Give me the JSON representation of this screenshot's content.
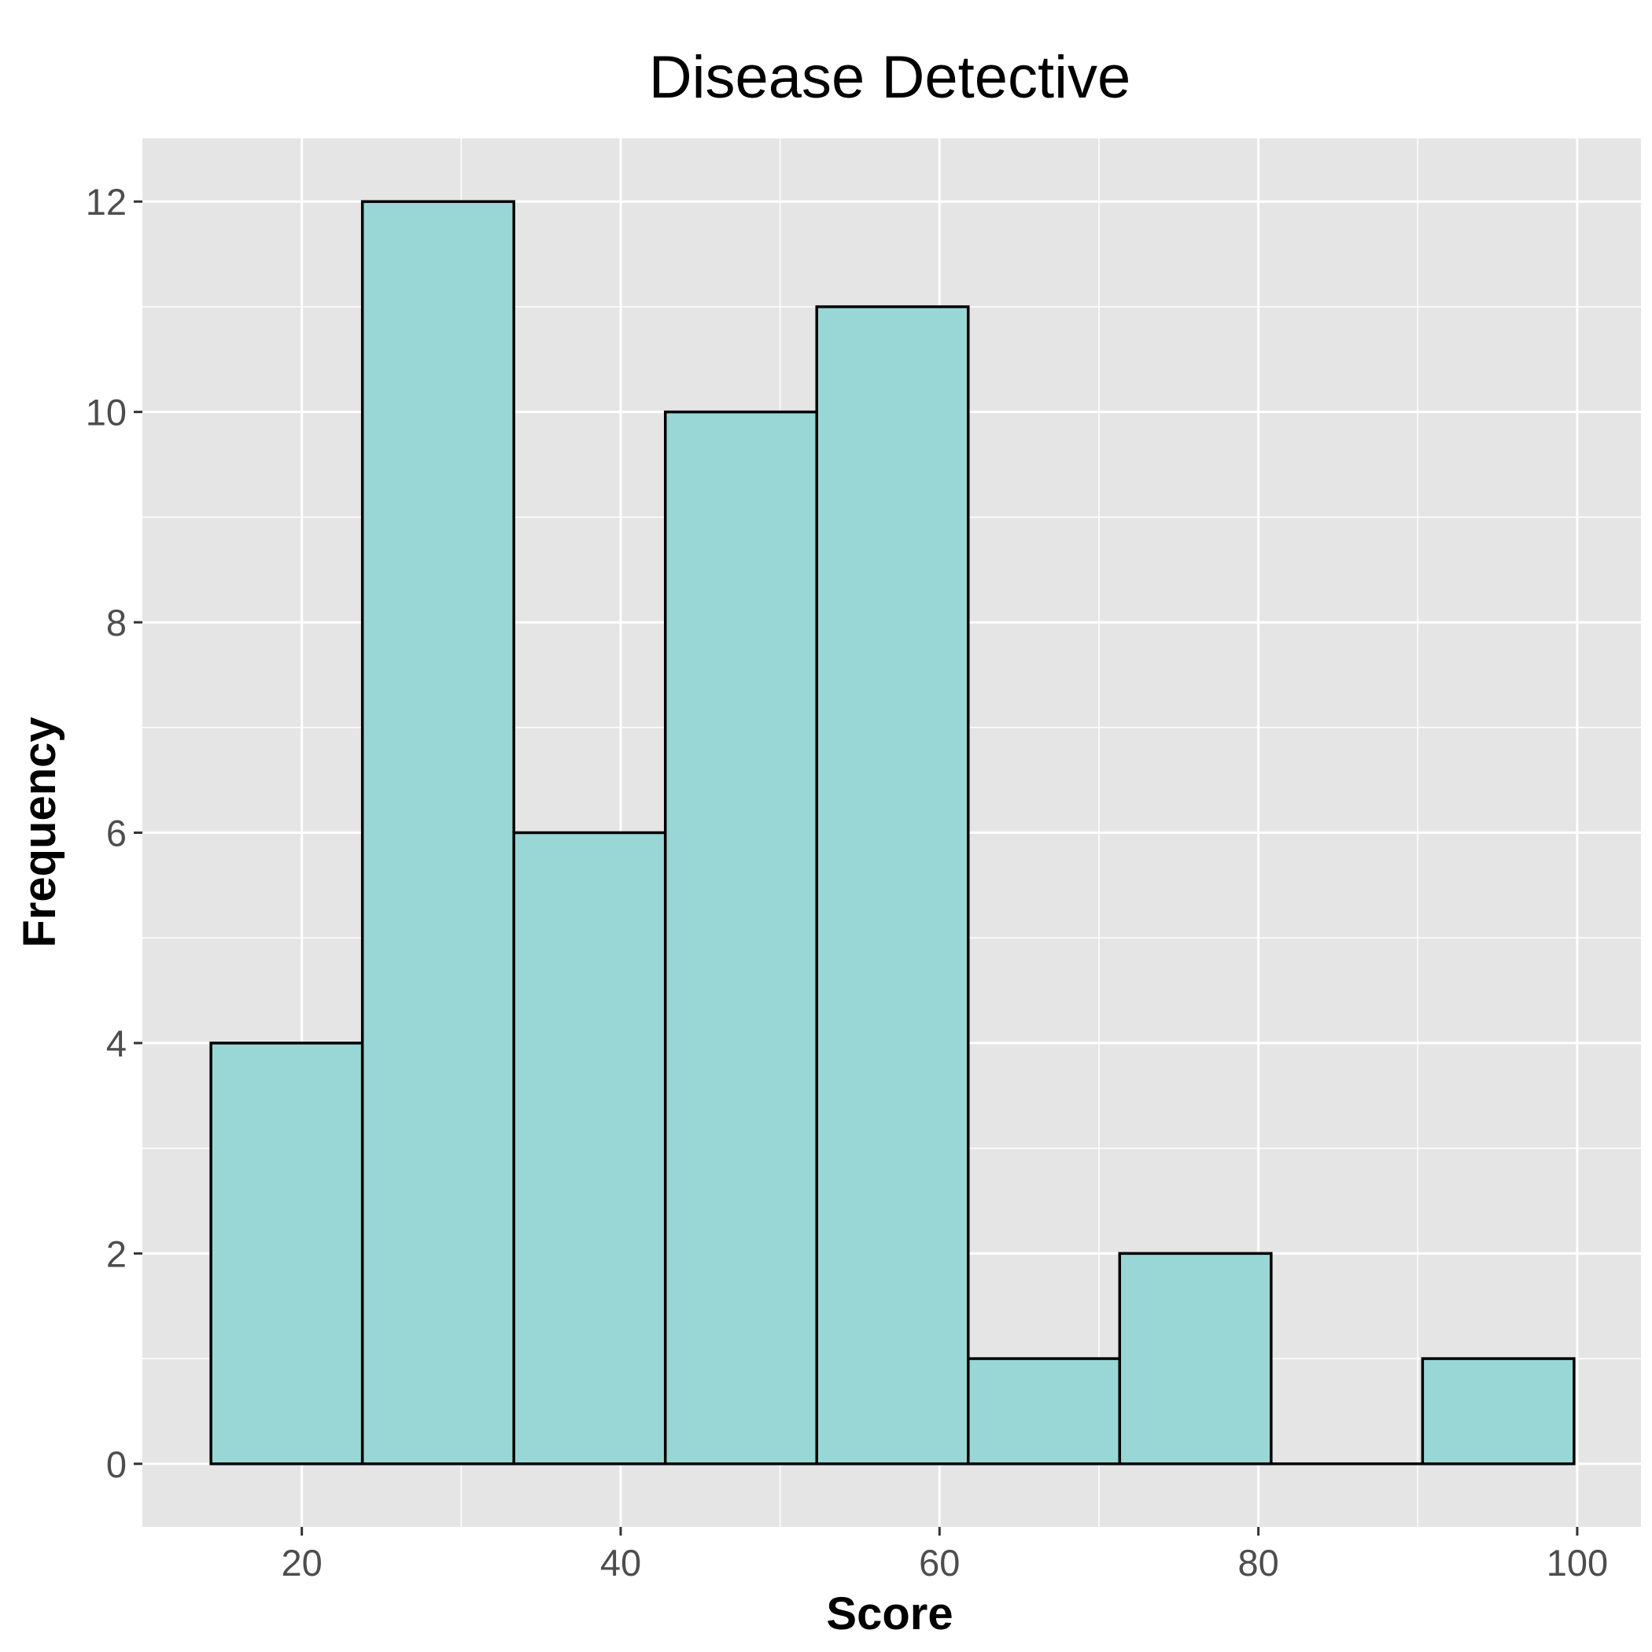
{
  "chart_data": {
    "type": "bar",
    "title": "Disease Detective",
    "xlabel": "Score",
    "ylabel": "Frequency",
    "bin_edges": [
      14.3,
      23.8,
      33.3,
      42.8,
      52.3,
      61.8,
      71.3,
      80.8,
      90.3,
      99.8
    ],
    "values": [
      4,
      12,
      6,
      10,
      11,
      1,
      2,
      0,
      1
    ],
    "xlim": [
      10,
      104
    ],
    "ylim": [
      -0.6,
      12.6
    ],
    "x_ticks": [
      "20",
      "40",
      "60",
      "80",
      "100"
    ],
    "y_ticks": [
      "0",
      "2",
      "4",
      "6",
      "8",
      "10",
      "12"
    ],
    "grid": true,
    "colors": {
      "panel_background": "#e5e5e5",
      "grid": "#ffffff",
      "bar_fill": "#98d7d6",
      "bar_outline": "#000000"
    }
  }
}
